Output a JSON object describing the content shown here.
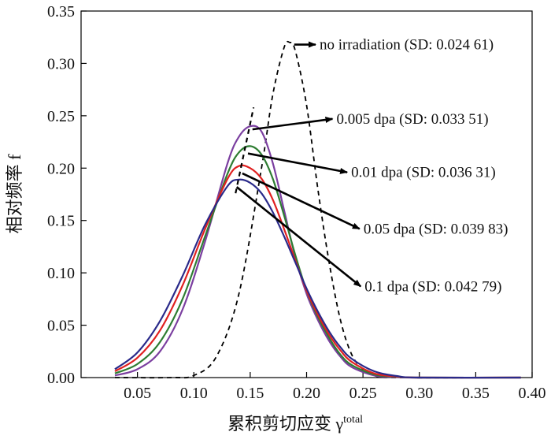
{
  "chart_data": {
    "type": "line",
    "xlabel": "累积剪切应变 γ",
    "xlabel_sup": "total",
    "ylabel": "相对频率 f",
    "xlim": [
      0.0,
      0.4
    ],
    "ylim": [
      0.0,
      0.35
    ],
    "xticks": [
      "0.05",
      "0.10",
      "0.15",
      "0.20",
      "0.25",
      "0.30",
      "0.35",
      "0.40"
    ],
    "yticks": [
      "0.00",
      "0.05",
      "0.10",
      "0.15",
      "0.20",
      "0.25",
      "0.30",
      "0.35"
    ],
    "grid": false,
    "series": [
      {
        "name": "no irradiation (SD: 0.024 61)",
        "color": "#000000",
        "dashed": true,
        "x": [
          0.03,
          0.08,
          0.1,
          0.12,
          0.14,
          0.16,
          0.17,
          0.18,
          0.185,
          0.19,
          0.2,
          0.21,
          0.22,
          0.23,
          0.24,
          0.25,
          0.26,
          0.28,
          0.39
        ],
        "y": [
          0.0,
          0.0,
          0.002,
          0.02,
          0.08,
          0.2,
          0.27,
          0.315,
          0.32,
          0.312,
          0.26,
          0.18,
          0.11,
          0.055,
          0.022,
          0.008,
          0.002,
          0.0,
          0.0
        ]
      },
      {
        "name": "0.005 dpa (SD: 0.033 51)",
        "color": "#7b3fa0",
        "dashed": false,
        "x": [
          0.03,
          0.05,
          0.07,
          0.09,
          0.11,
          0.13,
          0.14,
          0.15,
          0.16,
          0.17,
          0.18,
          0.19,
          0.2,
          0.21,
          0.22,
          0.23,
          0.24,
          0.26,
          0.28,
          0.3,
          0.39
        ],
        "y": [
          0.002,
          0.008,
          0.025,
          0.065,
          0.13,
          0.205,
          0.23,
          0.24,
          0.235,
          0.205,
          0.16,
          0.115,
          0.08,
          0.055,
          0.035,
          0.02,
          0.01,
          0.002,
          0.0005,
          0.0,
          0.0
        ]
      },
      {
        "name": "0.01 dpa (SD: 0.036 31)",
        "color": "#2e7d32",
        "dashed": false,
        "x": [
          0.03,
          0.05,
          0.07,
          0.09,
          0.11,
          0.13,
          0.14,
          0.15,
          0.16,
          0.17,
          0.18,
          0.19,
          0.2,
          0.21,
          0.22,
          0.23,
          0.24,
          0.26,
          0.28,
          0.3,
          0.39
        ],
        "y": [
          0.004,
          0.013,
          0.034,
          0.075,
          0.135,
          0.195,
          0.215,
          0.221,
          0.213,
          0.19,
          0.155,
          0.117,
          0.083,
          0.058,
          0.038,
          0.022,
          0.012,
          0.003,
          0.0008,
          0.0,
          0.0
        ]
      },
      {
        "name": "0.05 dpa (SD: 0.039 83)",
        "color": "#e02020",
        "dashed": false,
        "x": [
          0.03,
          0.05,
          0.07,
          0.09,
          0.11,
          0.13,
          0.14,
          0.15,
          0.16,
          0.17,
          0.18,
          0.19,
          0.2,
          0.21,
          0.22,
          0.23,
          0.24,
          0.26,
          0.28,
          0.3,
          0.39
        ],
        "y": [
          0.006,
          0.019,
          0.045,
          0.088,
          0.142,
          0.19,
          0.202,
          0.2,
          0.19,
          0.17,
          0.142,
          0.112,
          0.083,
          0.06,
          0.041,
          0.026,
          0.015,
          0.004,
          0.001,
          0.0,
          0.0
        ]
      },
      {
        "name": "0.1 dpa (SD: 0.042 79)",
        "color": "#2a2a8a",
        "dashed": false,
        "x": [
          0.03,
          0.05,
          0.07,
          0.09,
          0.11,
          0.13,
          0.14,
          0.15,
          0.16,
          0.17,
          0.18,
          0.19,
          0.2,
          0.21,
          0.22,
          0.23,
          0.24,
          0.26,
          0.28,
          0.3,
          0.39
        ],
        "y": [
          0.008,
          0.024,
          0.054,
          0.097,
          0.146,
          0.183,
          0.189,
          0.186,
          0.176,
          0.158,
          0.135,
          0.11,
          0.085,
          0.063,
          0.044,
          0.029,
          0.018,
          0.006,
          0.0015,
          0.0,
          0.0
        ]
      }
    ],
    "peak_trend_line": {
      "dashed": true,
      "color": "#000000",
      "x": [
        0.137,
        0.153
      ],
      "y": [
        0.176,
        0.258
      ]
    },
    "annotations": [
      {
        "text": "no irradiation (SD: 0.024 61)",
        "from": [
          0.189,
          0.318
        ],
        "to": [
          0.208,
          0.318
        ]
      },
      {
        "text": "0.005 dpa (SD: 0.033 51)",
        "from": [
          0.152,
          0.237
        ],
        "to": [
          0.223,
          0.247
        ]
      },
      {
        "text": "0.01 dpa (SD: 0.036 31)",
        "from": [
          0.148,
          0.214
        ],
        "to": [
          0.236,
          0.196
        ]
      },
      {
        "text": "0.05 dpa (SD: 0.039 83)",
        "from": [
          0.143,
          0.195
        ],
        "to": [
          0.247,
          0.142
        ]
      },
      {
        "text": "0.1 dpa (SD: 0.042 79)",
        "from": [
          0.138,
          0.182
        ],
        "to": [
          0.248,
          0.087
        ]
      }
    ]
  }
}
